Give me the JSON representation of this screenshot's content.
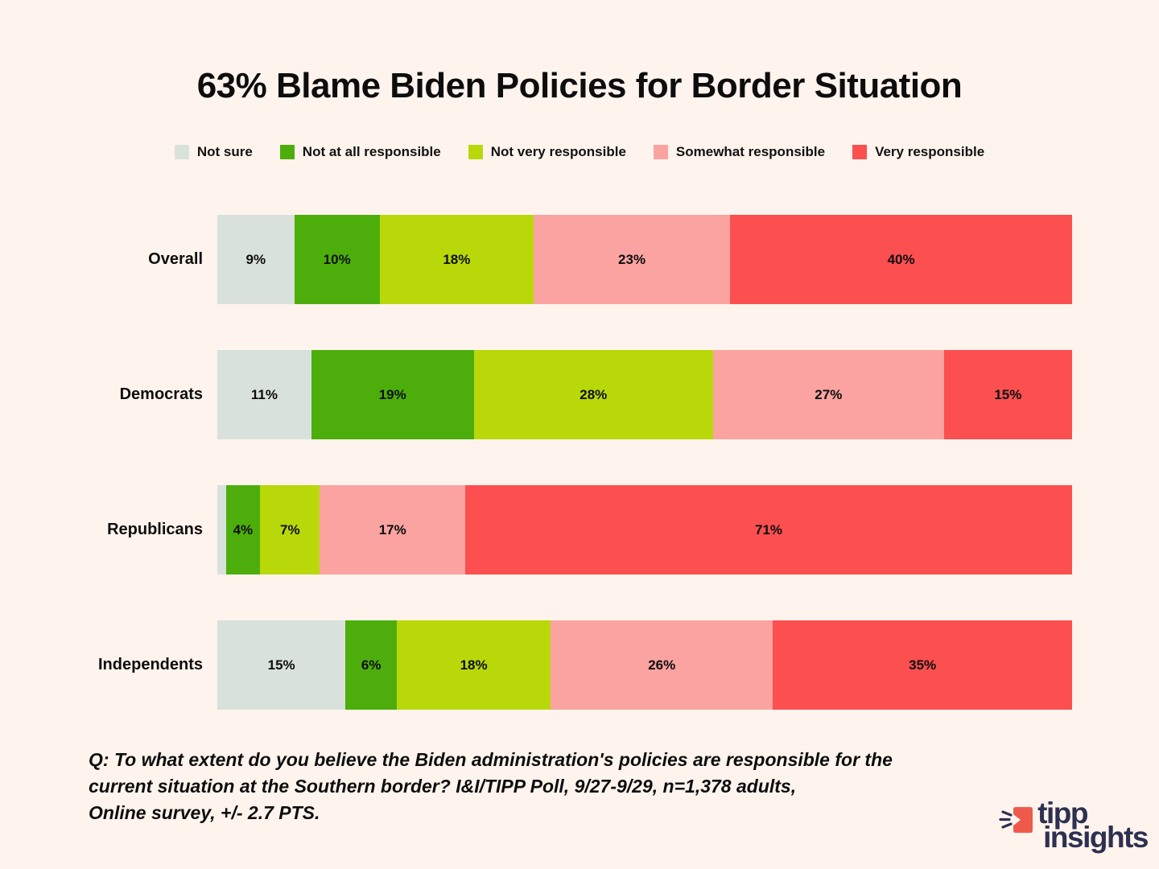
{
  "chart_data": {
    "type": "bar",
    "stacked": true,
    "orientation": "horizontal",
    "title": "63% Blame Biden Policies for Border Situation",
    "categories": [
      "Overall",
      "Democrats",
      "Republicans",
      "Independents"
    ],
    "series": [
      {
        "name": "Not sure",
        "color": "#d9e1dc",
        "values": [
          9,
          11,
          1,
          15
        ]
      },
      {
        "name": "Not at all responsible",
        "color": "#4dae0b",
        "values": [
          10,
          19,
          4,
          6
        ]
      },
      {
        "name": "Not very responsible",
        "color": "#b8d80a",
        "values": [
          18,
          28,
          7,
          18
        ]
      },
      {
        "name": "Somewhat responsible",
        "color": "#faa3a0",
        "values": [
          23,
          27,
          17,
          26
        ]
      },
      {
        "name": "Very responsible",
        "color": "#fb4f50",
        "values": [
          40,
          15,
          71,
          35
        ]
      }
    ],
    "value_suffix": "%",
    "hide_label_below": 2,
    "axis_range": [
      0,
      100
    ],
    "grid": false,
    "legend_position": "top"
  },
  "footnote": {
    "lines": [
      "Q: To what extent do you believe the Biden administration's policies are responsible for the",
      "current situation at the Southern border? I&I/TIPP Poll, 9/27-9/29, n=1,378 adults,",
      "Online survey, +/- 2.7 PTS."
    ]
  },
  "branding": {
    "logo_line1": "tipp",
    "logo_line2": "insights",
    "logo_accent_color": "#ee5a4b",
    "logo_text_color": "#2d3050"
  },
  "colors": {
    "background": "#fff4ed",
    "text": "#0d0d0d"
  }
}
